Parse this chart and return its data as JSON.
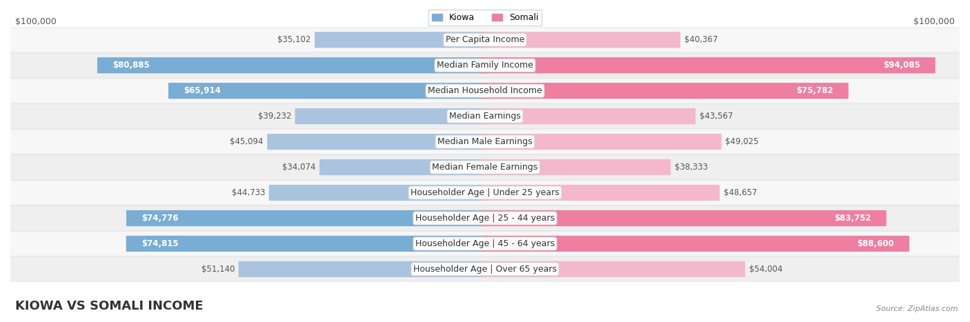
{
  "title": "KIOWA VS SOMALI INCOME",
  "source": "Source: ZipAtlas.com",
  "categories": [
    "Per Capita Income",
    "Median Family Income",
    "Median Household Income",
    "Median Earnings",
    "Median Male Earnings",
    "Median Female Earnings",
    "Householder Age | Under 25 years",
    "Householder Age | 25 - 44 years",
    "Householder Age | 45 - 64 years",
    "Householder Age | Over 65 years"
  ],
  "kiowa_values": [
    35102,
    80885,
    65914,
    39232,
    45094,
    34074,
    44733,
    74776,
    74815,
    51140
  ],
  "somali_values": [
    40367,
    94085,
    75782,
    43567,
    49025,
    38333,
    48657,
    83752,
    88600,
    54004
  ],
  "kiowa_labels": [
    "$35,102",
    "$80,885",
    "$65,914",
    "$39,232",
    "$45,094",
    "$34,074",
    "$44,733",
    "$74,776",
    "$74,815",
    "$51,140"
  ],
  "somali_labels": [
    "$40,367",
    "$94,085",
    "$75,782",
    "$43,567",
    "$49,025",
    "$38,333",
    "$48,657",
    "$83,752",
    "$88,600",
    "$54,004"
  ],
  "kiowa_color_light": "#aac4e0",
  "kiowa_color_dark": "#7aadd4",
  "somali_color_light": "#f4b8cc",
  "somali_color_dark": "#ee7fa0",
  "max_value": 100000,
  "background_color": "#ffffff",
  "row_colors": [
    "#f7f7f7",
    "#efefef"
  ],
  "title_fontsize": 13,
  "label_fontsize": 9,
  "bar_label_fontsize": 8.5,
  "large_bar_threshold": 0.28
}
